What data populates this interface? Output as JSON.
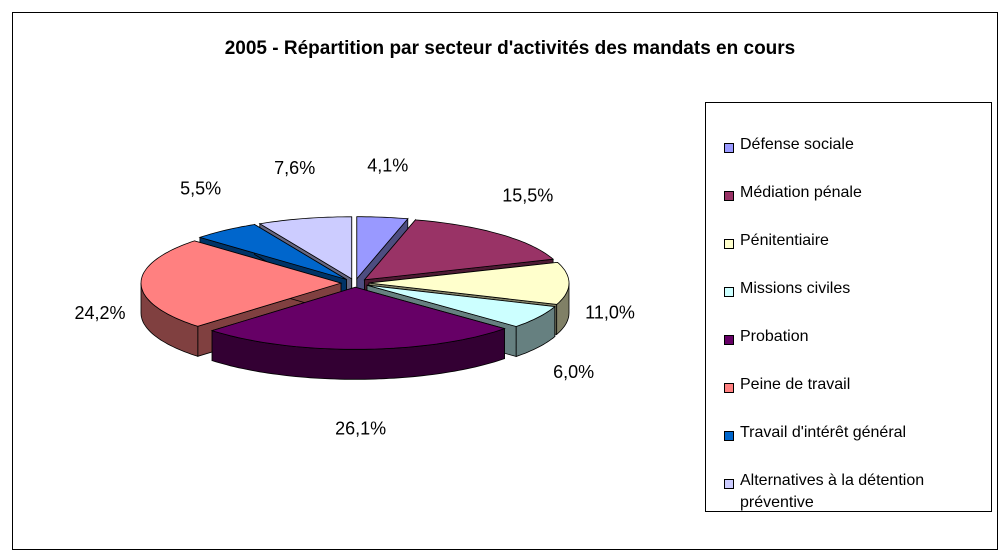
{
  "chart_data": {
    "type": "pie3d",
    "title": "2005 - Répartition par secteur d'activités des mandats en cours",
    "categories": [
      "Défense sociale",
      "Médiation pénale",
      "Pénitentiaire",
      "Missions civiles",
      "Probation",
      "Peine de travail",
      "Travail d'intérêt général",
      "Alternatives à la détention préventive"
    ],
    "values": [
      4.1,
      15.5,
      11.0,
      6.0,
      26.1,
      24.2,
      5.5,
      7.6
    ],
    "value_labels": [
      "4,1%",
      "15,5%",
      "11,0%",
      "6,0%",
      "26,1%",
      "24,2%",
      "5,5%",
      "7,6%"
    ],
    "colors": [
      "#9999FF",
      "#993366",
      "#FFFFCC",
      "#CCFFFF",
      "#660066",
      "#FF8080",
      "#0066CC",
      "#CCCCFF"
    ],
    "legend": "right"
  }
}
